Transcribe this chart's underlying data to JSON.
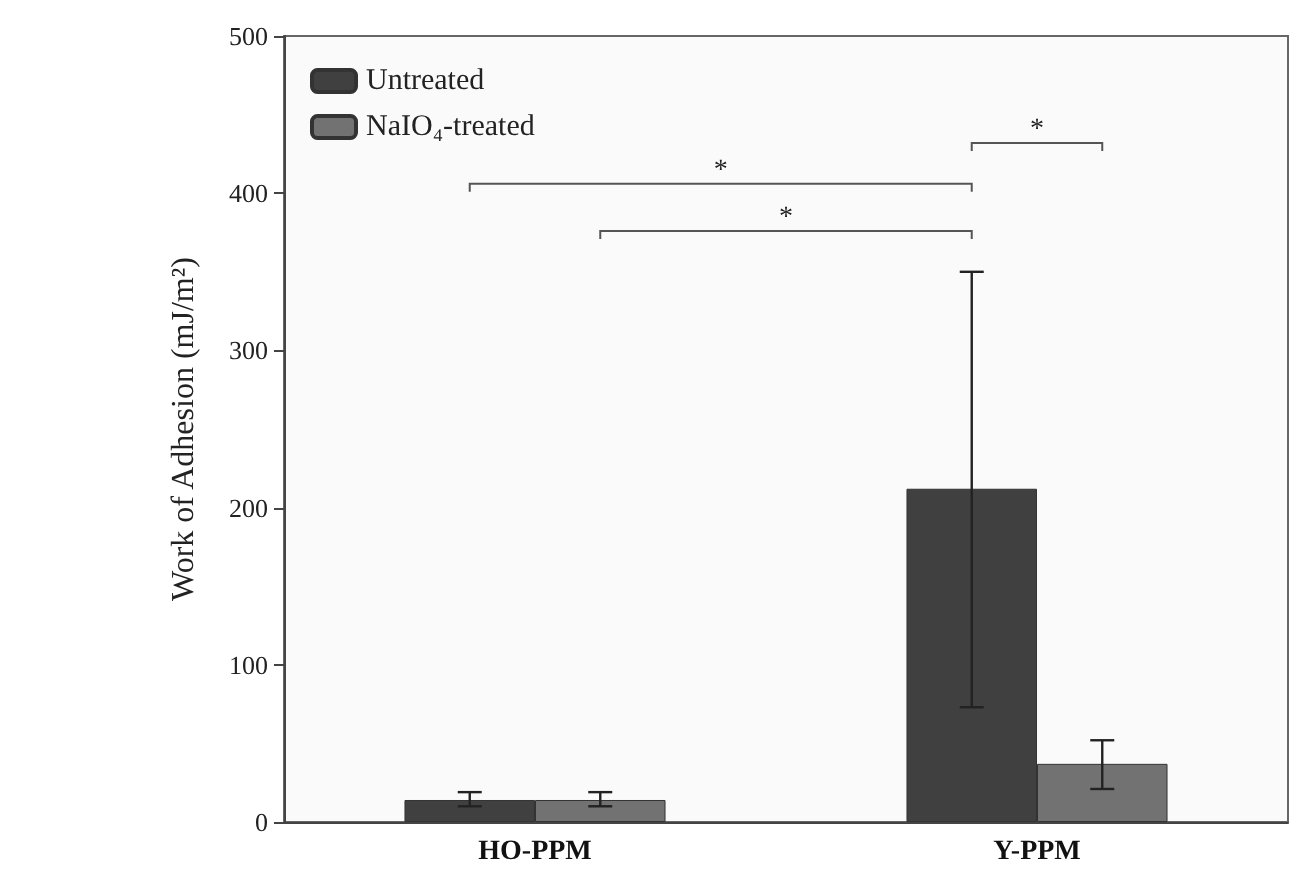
{
  "chart_data": {
    "type": "bar",
    "ylabel": "Work of Adhesion (mJ/m²)",
    "categories": [
      "HO-PPM",
      "Y-PPM"
    ],
    "series": [
      {
        "name": "Untreated",
        "color": "#404040",
        "values": [
          14,
          212
        ],
        "errors": [
          [
            10,
            19
          ],
          [
            73,
            350
          ]
        ]
      },
      {
        "name": "NaIO₄-treated",
        "color": "#727272",
        "values": [
          14,
          37
        ],
        "errors": [
          [
            10,
            19
          ],
          [
            21,
            52
          ]
        ]
      }
    ],
    "ylim": [
      0,
      500
    ],
    "yticks": [
      0,
      100,
      200,
      300,
      400,
      500
    ],
    "grid": false,
    "legend": "top left",
    "annotations": [
      "*",
      "*",
      "*"
    ]
  }
}
